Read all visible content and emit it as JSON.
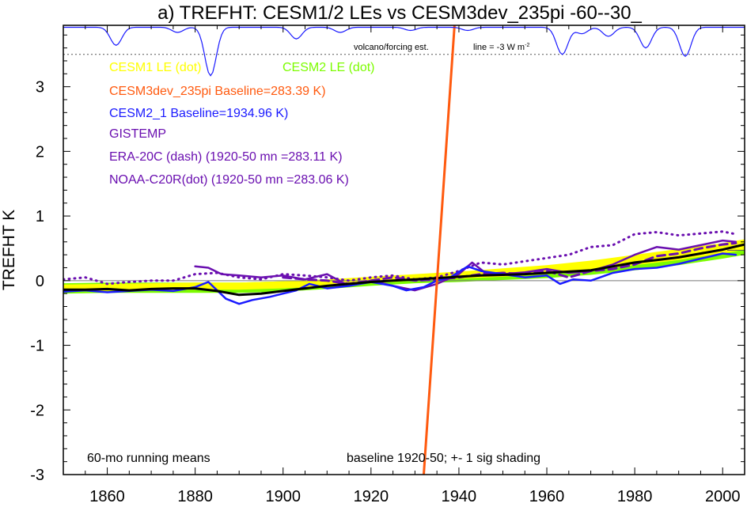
{
  "chart_data": {
    "type": "line",
    "title": "a) TREFHT: CESM1/2 LEs vs CESM3dev_235pi -60--30_",
    "ylabel": "TREFHT K",
    "xlim": [
      1850,
      2005
    ],
    "ylim": [
      -3,
      3.95
    ],
    "xticks": [
      1860,
      1880,
      1900,
      1920,
      1940,
      1960,
      1980,
      2000
    ],
    "yticks": [
      -3,
      -2,
      -1,
      0,
      1,
      2,
      3
    ],
    "grid": false,
    "legend_placement": "top-left",
    "legend": [
      {
        "label": "CESM1 LE (dot)",
        "color": "#ffff00"
      },
      {
        "label": "CESM2 LE (dot)",
        "color": "#7cfc00"
      },
      {
        "label": "CESM3dev_235pi Baseline=283.39 K)",
        "color": "#ff5a0f"
      },
      {
        "label": "CESM2_1 Baseline=1934.96 K)",
        "color": "#1a1aff"
      },
      {
        "label": "GISTEMP",
        "color": "#6a0fb0"
      },
      {
        "label": "ERA-20C (dash) (1920-50 mn =283.11 K)",
        "color": "#6a0fb0"
      },
      {
        "label": "NOAA-C20R(dot) (1920-50 mn =283.06 K)",
        "color": "#6a0fb0"
      }
    ],
    "annotations": {
      "left": "60-mo running means",
      "right": "baseline 1920-50; +- 1 sig shading",
      "volcano": "volcano/forcing est.",
      "forcing_line": "line = -3 W m",
      "forcing_sup": "-2"
    },
    "volcano_line_y": 3.5,
    "right_marker_y": 0.47,
    "series": [
      {
        "name": "CESM1 LE",
        "style": "band",
        "color": "#ffff00",
        "x": [
          1850,
          1860,
          1870,
          1880,
          1890,
          1900,
          1910,
          1920,
          1930,
          1940,
          1950,
          1960,
          1970,
          1980,
          1990,
          2000,
          2005
        ],
        "lower": [
          -0.17,
          -0.16,
          -0.15,
          -0.14,
          -0.14,
          -0.12,
          -0.09,
          -0.04,
          0.0,
          0.03,
          0.06,
          0.1,
          0.16,
          0.24,
          0.32,
          0.42,
          0.48
        ],
        "upper": [
          -0.06,
          -0.05,
          -0.04,
          -0.03,
          -0.03,
          -0.01,
          0.02,
          0.06,
          0.1,
          0.14,
          0.19,
          0.24,
          0.31,
          0.4,
          0.49,
          0.58,
          0.64
        ]
      },
      {
        "name": "CESM2 LE",
        "style": "band",
        "color": "#7cfc00",
        "x": [
          1850,
          1860,
          1870,
          1880,
          1890,
          1900,
          1910,
          1920,
          1930,
          1940,
          1950,
          1960,
          1970,
          1980,
          1990,
          2000,
          2005
        ],
        "lower": [
          -0.2,
          -0.19,
          -0.19,
          -0.19,
          -0.19,
          -0.17,
          -0.13,
          -0.08,
          -0.04,
          -0.02,
          0.01,
          0.04,
          0.09,
          0.16,
          0.24,
          0.34,
          0.4
        ],
        "upper": [
          -0.04,
          -0.03,
          -0.03,
          -0.03,
          -0.03,
          -0.01,
          0.02,
          0.05,
          0.08,
          0.11,
          0.14,
          0.18,
          0.24,
          0.31,
          0.39,
          0.48,
          0.54
        ]
      },
      {
        "name": "CESM3dev_235pi",
        "style": "solid",
        "color": "#ff5a0f",
        "x": [
          1932,
          1939
        ],
        "y": [
          -3.0,
          3.95
        ]
      },
      {
        "name": "CESM2_1",
        "style": "solid",
        "color": "#1a1aff",
        "x": [
          1850,
          1855,
          1860,
          1865,
          1870,
          1875,
          1880,
          1883,
          1887,
          1890,
          1893,
          1897,
          1900,
          1903,
          1906,
          1910,
          1915,
          1920,
          1925,
          1928,
          1932,
          1935,
          1938,
          1942,
          1945,
          1950,
          1955,
          1960,
          1963,
          1966,
          1970,
          1975,
          1980,
          1985,
          1990,
          1995,
          2000,
          2003
        ],
        "y": [
          -0.17,
          -0.15,
          -0.18,
          -0.16,
          -0.14,
          -0.16,
          -0.1,
          -0.02,
          -0.28,
          -0.36,
          -0.3,
          -0.25,
          -0.2,
          -0.15,
          -0.05,
          -0.12,
          -0.08,
          -0.02,
          -0.08,
          -0.15,
          -0.1,
          0.0,
          0.05,
          0.22,
          0.15,
          0.1,
          0.05,
          0.08,
          -0.05,
          0.02,
          0.0,
          0.12,
          0.18,
          0.2,
          0.26,
          0.34,
          0.42,
          0.4
        ]
      },
      {
        "name": "GISTEMP",
        "style": "solid",
        "color": "#6a0fb0",
        "x": [
          1880,
          1883,
          1886,
          1890,
          1895,
          1900,
          1905,
          1910,
          1915,
          1920,
          1925,
          1930,
          1935,
          1940,
          1943,
          1946,
          1950,
          1955,
          1960,
          1965,
          1970,
          1975,
          1980,
          1985,
          1990,
          1995,
          2000,
          2003
        ],
        "y": [
          0.22,
          0.2,
          0.1,
          0.08,
          0.05,
          0.08,
          0.02,
          0.1,
          -0.08,
          0.0,
          -0.08,
          -0.15,
          -0.05,
          0.1,
          0.28,
          0.12,
          0.1,
          0.13,
          0.18,
          0.12,
          0.15,
          0.25,
          0.4,
          0.52,
          0.48,
          0.55,
          0.62,
          0.6
        ]
      },
      {
        "name": "ERA-20C",
        "style": "dash",
        "color": "#6a0fb0",
        "x": [
          1900,
          1905,
          1910,
          1915,
          1920,
          1925,
          1930,
          1935,
          1940,
          1945,
          1950,
          1955,
          1960,
          1965,
          1970,
          1975,
          1980,
          1985,
          1990,
          1995,
          2000,
          2003
        ],
        "y": [
          0.05,
          0.02,
          0.0,
          -0.05,
          0.0,
          0.05,
          0.0,
          0.02,
          0.05,
          0.1,
          0.12,
          0.1,
          0.15,
          0.05,
          0.15,
          0.18,
          0.25,
          0.38,
          0.42,
          0.5,
          0.56,
          0.58
        ]
      },
      {
        "name": "NOAA-C20R",
        "style": "dot",
        "color": "#6a0fb0",
        "x": [
          1850,
          1855,
          1860,
          1865,
          1870,
          1875,
          1880,
          1885,
          1890,
          1895,
          1900,
          1905,
          1910,
          1915,
          1920,
          1925,
          1930,
          1935,
          1940,
          1945,
          1950,
          1955,
          1960,
          1965,
          1970,
          1975,
          1980,
          1985,
          1990,
          1995,
          2000,
          2003
        ],
        "y": [
          0.02,
          0.05,
          -0.05,
          -0.02,
          0.0,
          0.0,
          0.1,
          0.12,
          0.05,
          0.02,
          0.1,
          0.08,
          0.05,
          0.0,
          0.05,
          0.08,
          0.02,
          0.05,
          0.15,
          0.28,
          0.25,
          0.3,
          0.35,
          0.4,
          0.52,
          0.55,
          0.72,
          0.75,
          0.7,
          0.73,
          0.76,
          0.72
        ]
      },
      {
        "name": "ensemble mean",
        "style": "thick",
        "color": "#000000",
        "x": [
          1850,
          1855,
          1860,
          1865,
          1870,
          1875,
          1880,
          1885,
          1890,
          1895,
          1900,
          1905,
          1910,
          1915,
          1920,
          1925,
          1930,
          1935,
          1940,
          1945,
          1950,
          1955,
          1960,
          1965,
          1970,
          1975,
          1980,
          1985,
          1990,
          1995,
          2000,
          2005
        ],
        "y": [
          -0.14,
          -0.14,
          -0.13,
          -0.15,
          -0.13,
          -0.12,
          -0.12,
          -0.16,
          -0.22,
          -0.2,
          -0.16,
          -0.12,
          -0.08,
          -0.05,
          -0.02,
          0.0,
          0.02,
          0.04,
          0.06,
          0.08,
          0.09,
          0.1,
          0.12,
          0.14,
          0.16,
          0.22,
          0.28,
          0.32,
          0.36,
          0.42,
          0.48,
          0.56
        ]
      }
    ],
    "forcing_dips": [
      {
        "x": 1862,
        "depth": 0.28
      },
      {
        "x": 1876,
        "depth": 0.08
      },
      {
        "x": 1883.5,
        "depth": 0.75
      },
      {
        "x": 1903,
        "depth": 0.18
      },
      {
        "x": 1913,
        "depth": 0.08
      },
      {
        "x": 1929,
        "depth": 0.05
      },
      {
        "x": 1942,
        "depth": 0.05
      },
      {
        "x": 1963.5,
        "depth": 0.42
      },
      {
        "x": 1968,
        "depth": 0.1
      },
      {
        "x": 1974,
        "depth": 0.14
      },
      {
        "x": 1982.5,
        "depth": 0.32
      },
      {
        "x": 1991.5,
        "depth": 0.45
      }
    ]
  }
}
